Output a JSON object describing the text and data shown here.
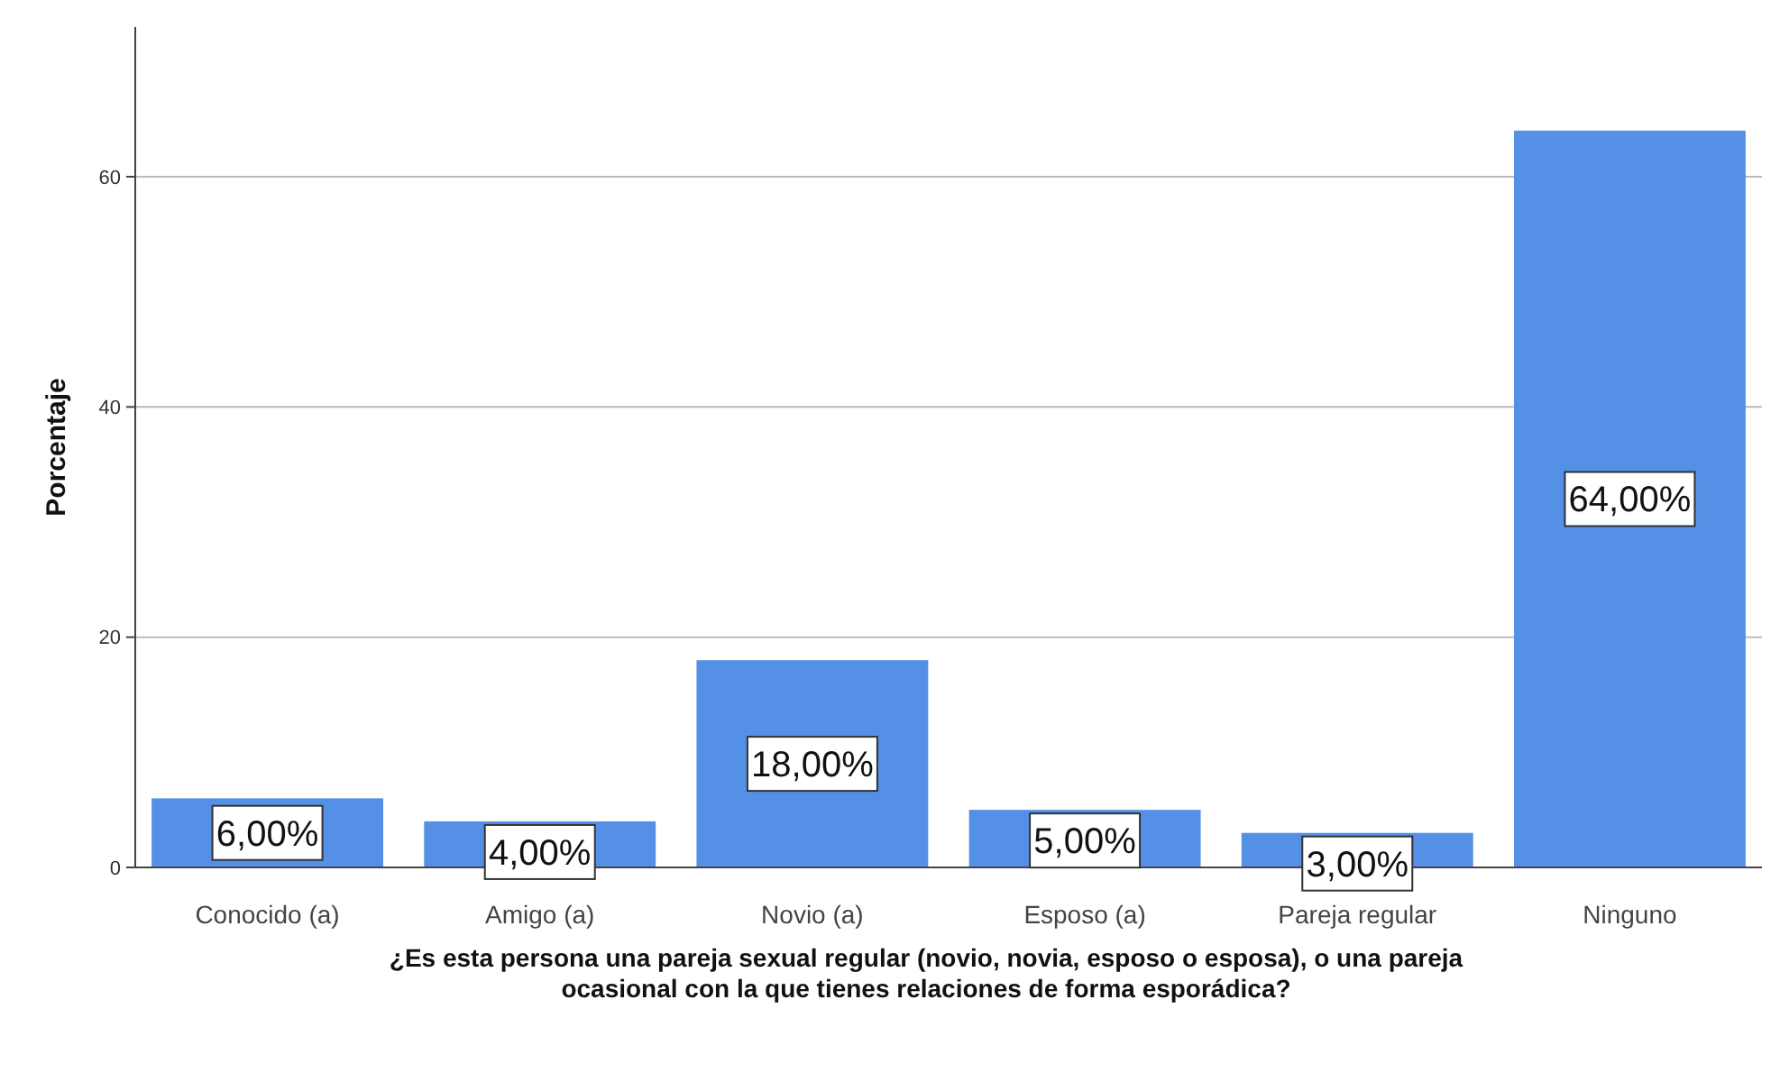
{
  "chart_data": {
    "type": "bar",
    "xlabel": "¿Es esta persona una pareja sexual regular (novio, novia, esposo o esposa), o una pareja ocasional con la que tienes relaciones de forma esporádica?",
    "ylabel": "Porcentaje",
    "categories": [
      "Conocido (a)",
      "Amigo (a)",
      "Novio (a)",
      "Esposo (a)",
      "Pareja regular",
      "Ninguno"
    ],
    "values": [
      6,
      4,
      18,
      5,
      3,
      64
    ],
    "value_labels": [
      "6,00%",
      "4,00%",
      "18,00%",
      "5,00%",
      "3,00%",
      "64,00%"
    ],
    "color": "#5390e6",
    "ylim": [
      0,
      73
    ],
    "yticks": [
      0,
      20,
      40,
      60
    ],
    "grid": "y"
  }
}
